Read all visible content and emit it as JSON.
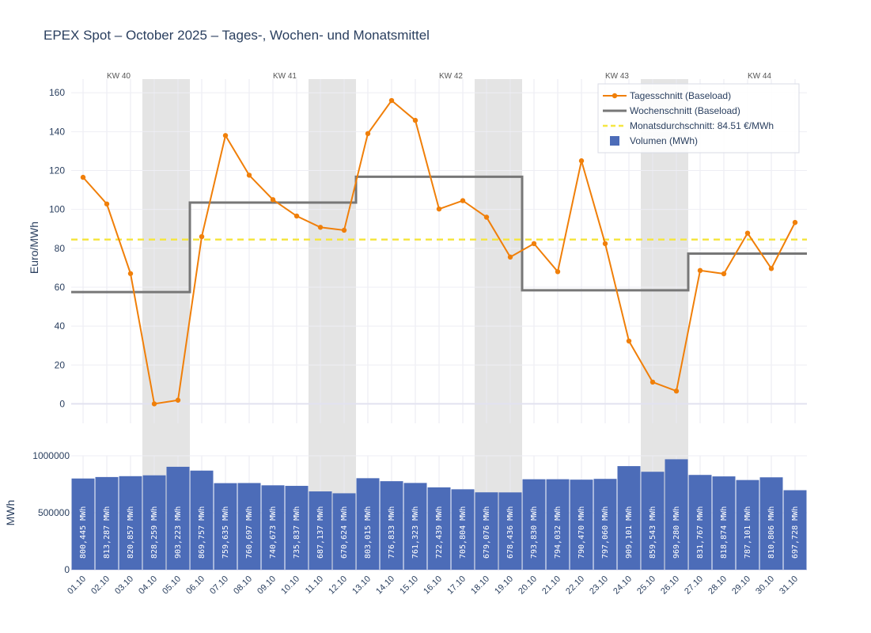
{
  "chart_data": {
    "title": "EPEX Spot – October 2025 – Tages-, Wochen- und Monatsmittel",
    "type": "line",
    "x": [
      "01.10",
      "02.10",
      "03.10",
      "04.10",
      "05.10",
      "06.10",
      "07.10",
      "08.10",
      "09.10",
      "10.10",
      "11.10",
      "12.10",
      "13.10",
      "14.10",
      "15.10",
      "16.10",
      "17.10",
      "18.10",
      "19.10",
      "20.10",
      "21.10",
      "22.10",
      "23.10",
      "24.10",
      "25.10",
      "26.10",
      "27.10",
      "28.10",
      "29.10",
      "30.10",
      "31.10"
    ],
    "series": [
      {
        "name": "Tagesschnitt (Baseload)",
        "type": "line",
        "color": "#f07f09",
        "values": [
          116.5,
          102.8,
          67.0,
          0.0,
          1.9,
          86.0,
          138.0,
          117.6,
          105.0,
          96.6,
          90.8,
          89.3,
          139.0,
          156.0,
          145.8,
          100.2,
          104.5,
          96.0,
          75.5,
          82.4,
          68.0,
          125.0,
          82.4,
          32.3,
          11.2,
          6.6,
          68.6,
          66.9,
          87.8,
          69.6,
          93.3
        ]
      },
      {
        "name": "Wochenschnitt (Baseload)",
        "type": "step",
        "color": "#777777",
        "values": [
          57.5,
          57.5,
          57.5,
          57.5,
          57.5,
          103.5,
          103.5,
          103.5,
          103.5,
          103.5,
          103.5,
          103.5,
          116.8,
          116.8,
          116.8,
          116.8,
          116.8,
          116.8,
          116.8,
          58.4,
          58.4,
          58.4,
          58.4,
          58.4,
          58.4,
          58.4,
          77.3,
          77.3,
          77.3,
          77.3,
          77.3
        ]
      },
      {
        "name": "Volumen (MWh)",
        "type": "bar",
        "color": "#4c6cb8",
        "values": [
          800445,
          813287,
          820857,
          828259,
          903223,
          869757,
          759635,
          760697,
          740673,
          735837,
          687137,
          670624,
          803015,
          776833,
          761323,
          722439,
          705804,
          679076,
          678436,
          793830,
          794032,
          790470,
          797060,
          909101,
          859543,
          969280,
          831767,
          818874,
          787101,
          810806,
          697728
        ],
        "labels": [
          "800,445 MWh",
          "813,287 MWh",
          "820,857 MWh",
          "828,259 MWh",
          "903,223 MWh",
          "869,757 MWh",
          "759,635 MWh",
          "760,697 MWh",
          "740,673 MWh",
          "735,837 MWh",
          "687,137 MWh",
          "670,624 MWh",
          "803,015 MWh",
          "776,833 MWh",
          "761,323 MWh",
          "722,439 MWh",
          "705,804 MWh",
          "679,076 MWh",
          "678,436 MWh",
          "793,830 MWh",
          "794,032 MWh",
          "790,470 MWh",
          "797,060 MWh",
          "909,101 MWh",
          "859,543 MWh",
          "969,280 MWh",
          "831,767 MWh",
          "818,874 MWh",
          "787,101 MWh",
          "810,806 MWh",
          "697,728 MWh"
        ]
      }
    ],
    "monthly_mean": {
      "value": 84.51,
      "label": "Monatsdurchschnitt: 84.51 €/MWh",
      "color": "#f5e642"
    },
    "weekends": [
      [
        3,
        4
      ],
      [
        10,
        11
      ],
      [
        17,
        18
      ],
      [
        24,
        25
      ]
    ],
    "weeks": [
      {
        "label": "KW 40",
        "center_index": 1.5
      },
      {
        "label": "KW 41",
        "center_index": 8.5
      },
      {
        "label": "KW 42",
        "center_index": 15.5
      },
      {
        "label": "KW 43",
        "center_index": 22.5
      },
      {
        "label": "KW 44",
        "center_index": 28.5
      }
    ],
    "price_axis": {
      "title": "Euro/MWh",
      "range": [
        -10,
        167
      ],
      "ticks": [
        0,
        20,
        40,
        60,
        80,
        100,
        120,
        140,
        160
      ]
    },
    "volume_axis": {
      "title": "MWh",
      "range": [
        0,
        1000000
      ],
      "ticks": [
        0,
        500000,
        1000000
      ]
    },
    "legend": {
      "position": "top-right",
      "items": [
        "Tagesschnitt (Baseload)",
        "Wochenschnitt (Baseload)",
        "Monatsdurchschnitt: 84.51 €/MWh",
        "Volumen (MWh)"
      ]
    }
  }
}
